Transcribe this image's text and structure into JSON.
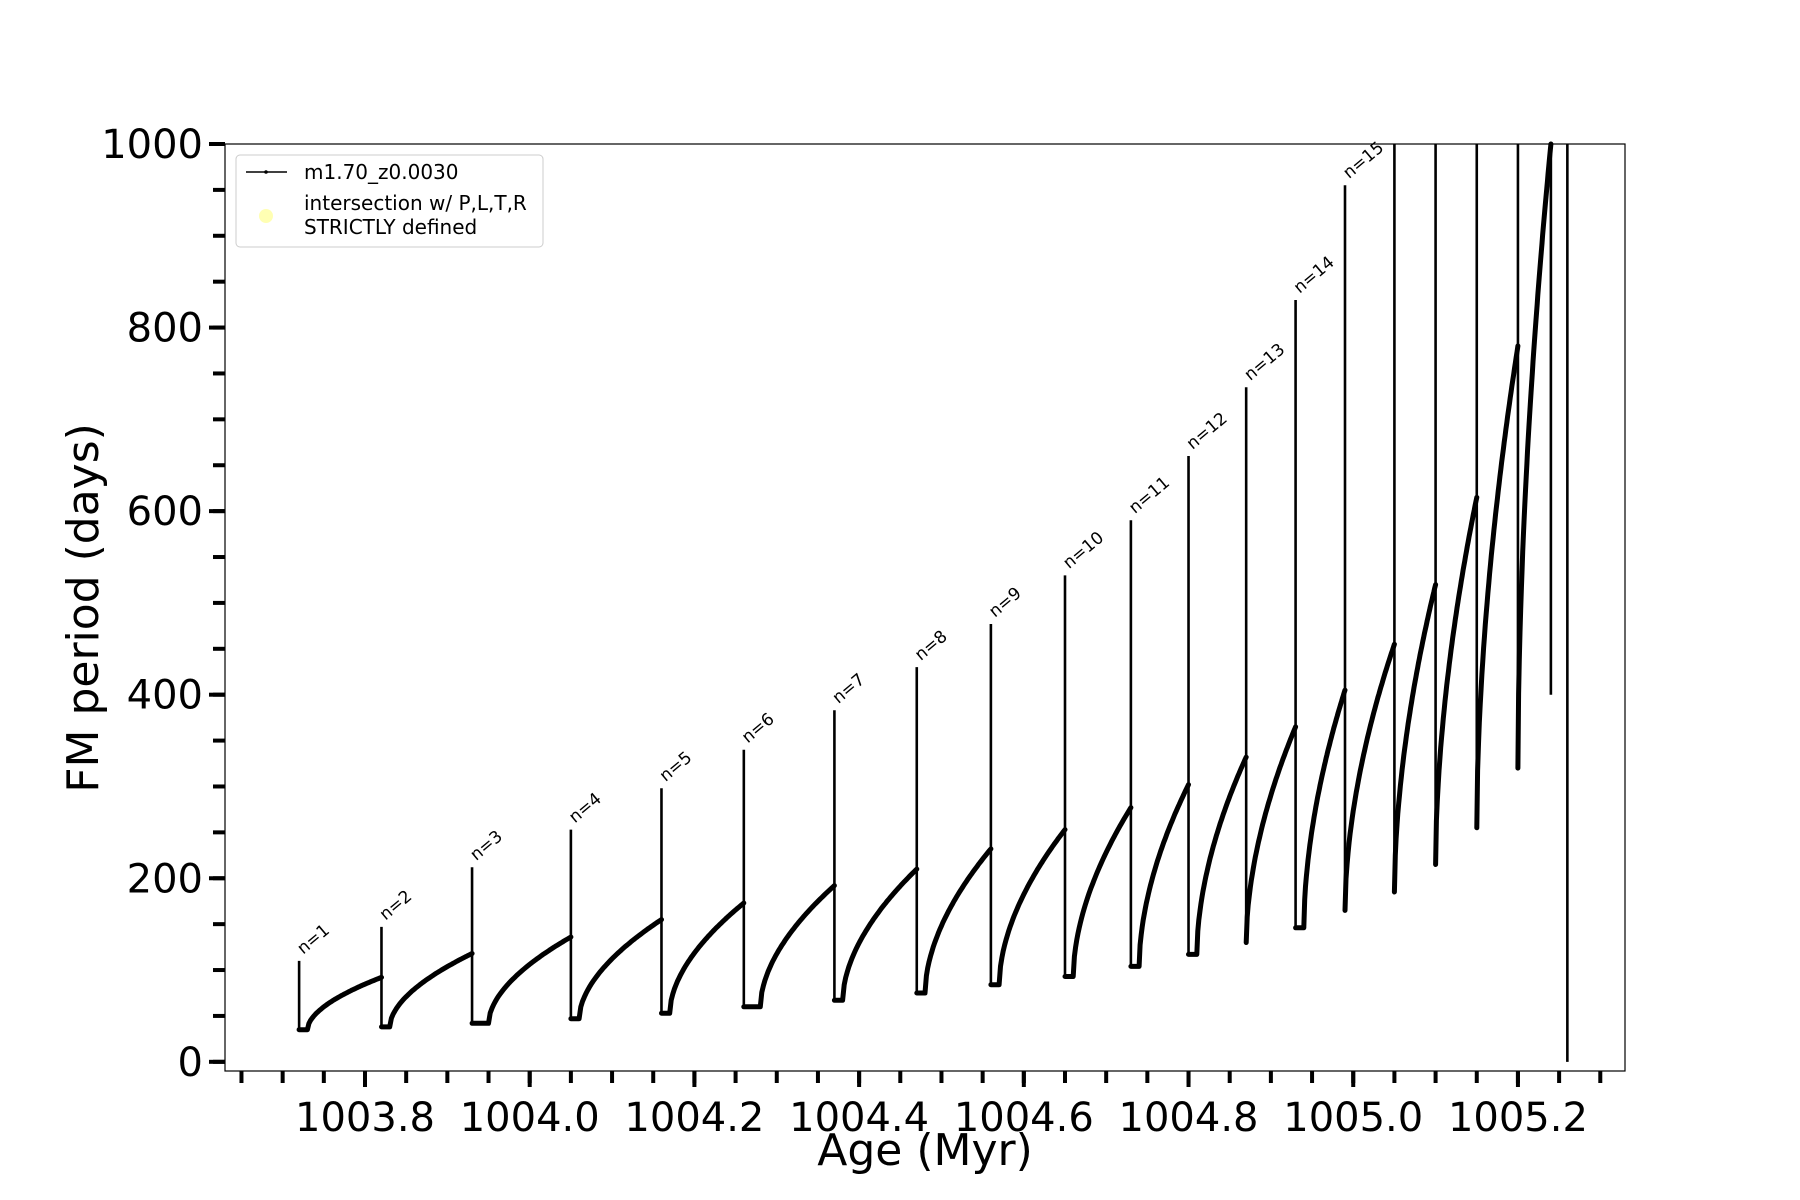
{
  "chart_data": {
    "type": "line",
    "xlabel": "Age (Myr)",
    "ylabel": "FM period (days)",
    "xlim": [
      1003.63,
      1005.33
    ],
    "ylim": [
      -10,
      1000
    ],
    "x_ticks": [
      1003.8,
      1004.0,
      1004.2,
      1004.4,
      1004.6,
      1004.8,
      1005.0,
      1005.2
    ],
    "x_tick_labels": [
      "1003.8",
      "1004.0",
      "1004.2",
      "1004.4",
      "1004.6",
      "1004.8",
      "1005.0",
      "1005.2"
    ],
    "x_minor_step": 0.05,
    "y_ticks": [
      0,
      200,
      400,
      600,
      800,
      1000
    ],
    "y_tick_labels": [
      "0",
      "200",
      "400",
      "600",
      "800",
      "1000"
    ],
    "y_minor_step": 50,
    "legend": {
      "position": "top-left",
      "entries": [
        {
          "label": "m1.70_z0.0030",
          "marker": "line-with-dots",
          "color": "#000000"
        },
        {
          "label_line1": "intersection w/ P,L,T,R",
          "label_line2": "STRICTLY defined",
          "marker": "circle",
          "color": "#ffffb3"
        }
      ]
    },
    "series": [
      {
        "name": "m1.70_z0.0030",
        "color": "#000000",
        "pulses": [
          {
            "label": "n=1",
            "x": 1003.72,
            "peak": 110,
            "dip": 35,
            "dip_x": 1003.73,
            "plateau": 92
          },
          {
            "label": "n=2",
            "x": 1003.82,
            "peak": 147,
            "dip": 38,
            "dip_x": 1003.83,
            "plateau": 118
          },
          {
            "label": "n=3",
            "x": 1003.93,
            "peak": 212,
            "dip": 42,
            "dip_x": 1003.95,
            "plateau": 136
          },
          {
            "label": "n=4",
            "x": 1004.05,
            "peak": 253,
            "dip": 47,
            "dip_x": 1004.06,
            "plateau": 155
          },
          {
            "label": "n=5",
            "x": 1004.16,
            "peak": 298,
            "dip": 53,
            "dip_x": 1004.17,
            "plateau": 173
          },
          {
            "label": "n=6",
            "x": 1004.26,
            "peak": 340,
            "dip": 60,
            "dip_x": 1004.28,
            "plateau": 192
          },
          {
            "label": "n=7",
            "x": 1004.37,
            "peak": 383,
            "dip": 67,
            "dip_x": 1004.38,
            "plateau": 210
          },
          {
            "label": "n=8",
            "x": 1004.47,
            "peak": 430,
            "dip": 75,
            "dip_x": 1004.48,
            "plateau": 232
          },
          {
            "label": "n=9",
            "x": 1004.56,
            "peak": 477,
            "dip": 84,
            "dip_x": 1004.57,
            "plateau": 253
          },
          {
            "label": "n=10",
            "x": 1004.65,
            "peak": 530,
            "dip": 93,
            "dip_x": 1004.66,
            "plateau": 277
          },
          {
            "label": "n=11",
            "x": 1004.73,
            "peak": 590,
            "dip": 104,
            "dip_x": 1004.74,
            "plateau": 302
          },
          {
            "label": "n=12",
            "x": 1004.8,
            "peak": 660,
            "dip": 117,
            "dip_x": 1004.81,
            "plateau": 332
          },
          {
            "label": "n=13",
            "x": 1004.87,
            "peak": 735,
            "dip": 130,
            "dip_x": 1004.87,
            "plateau": 365
          },
          {
            "label": "n=14",
            "x": 1004.93,
            "peak": 830,
            "dip": 146,
            "dip_x": 1004.94,
            "plateau": 405
          },
          {
            "label": "n=15",
            "x": 1004.99,
            "peak": 955,
            "dip": 165,
            "dip_x": 1004.99,
            "plateau": 455
          },
          {
            "label": "",
            "x": 1005.05,
            "peak": 1000,
            "dip": 185,
            "dip_x": 1005.05,
            "plateau": 520
          },
          {
            "label": "",
            "x": 1005.1,
            "peak": 1000,
            "dip": 215,
            "dip_x": 1005.1,
            "plateau": 615
          },
          {
            "label": "",
            "x": 1005.15,
            "peak": 1000,
            "dip": 255,
            "dip_x": 1005.15,
            "plateau": 780
          },
          {
            "label": "",
            "x": 1005.2,
            "peak": 1000,
            "dip": 320,
            "dip_x": 1005.2,
            "plateau": 1000
          },
          {
            "label": "",
            "x": 1005.24,
            "peak": 1000,
            "dip": 400,
            "dip_x": 1005.24,
            "plateau": null
          },
          {
            "label": "",
            "x": 1005.26,
            "peak": 1000,
            "dip": 0,
            "dip_x": 1005.26,
            "plateau": null
          }
        ]
      }
    ]
  }
}
